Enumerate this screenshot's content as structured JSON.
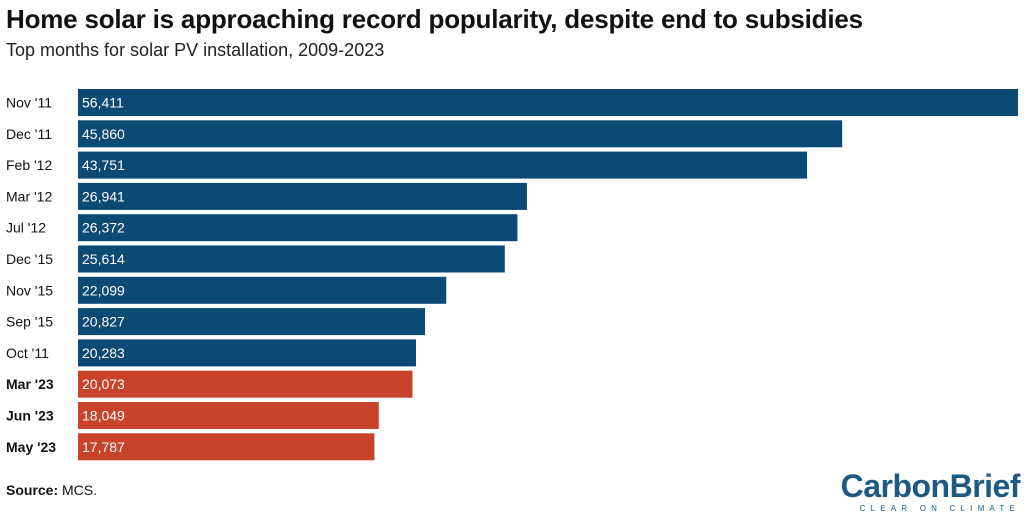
{
  "title": "Home solar is approaching record popularity, despite end to subsidies",
  "subtitle": "Top months for solar PV installation, 2009-2023",
  "source_label": "Source:",
  "source_text": " MCS.",
  "logo": {
    "text": "CarbonBrief",
    "tagline": "CLEAR ON CLIMATE"
  },
  "colors": {
    "historic": "#0b4a74",
    "recent": "#c8432a",
    "label_text": "#ffffff"
  },
  "chart_data": {
    "type": "bar",
    "orientation": "horizontal",
    "categories": [
      "Nov '11",
      "Dec '11",
      "Feb '12",
      "Mar '12",
      "Jul '12",
      "Dec '15",
      "Nov '15",
      "Sep '15",
      "Oct '11",
      "Mar '23",
      "Jun '23",
      "May '23"
    ],
    "values": [
      56411,
      45860,
      43751,
      26941,
      26372,
      25614,
      22099,
      20827,
      20283,
      20073,
      18049,
      17787
    ],
    "value_labels": [
      "56,411",
      "45,860",
      "43,751",
      "26,941",
      "26,372",
      "25,614",
      "22,099",
      "20,827",
      "20,283",
      "20,073",
      "18,049",
      "17,787"
    ],
    "highlight": [
      false,
      false,
      false,
      false,
      false,
      false,
      false,
      false,
      false,
      true,
      true,
      true
    ],
    "xlim": [
      0,
      56411
    ],
    "grid": false,
    "legend": "none"
  }
}
